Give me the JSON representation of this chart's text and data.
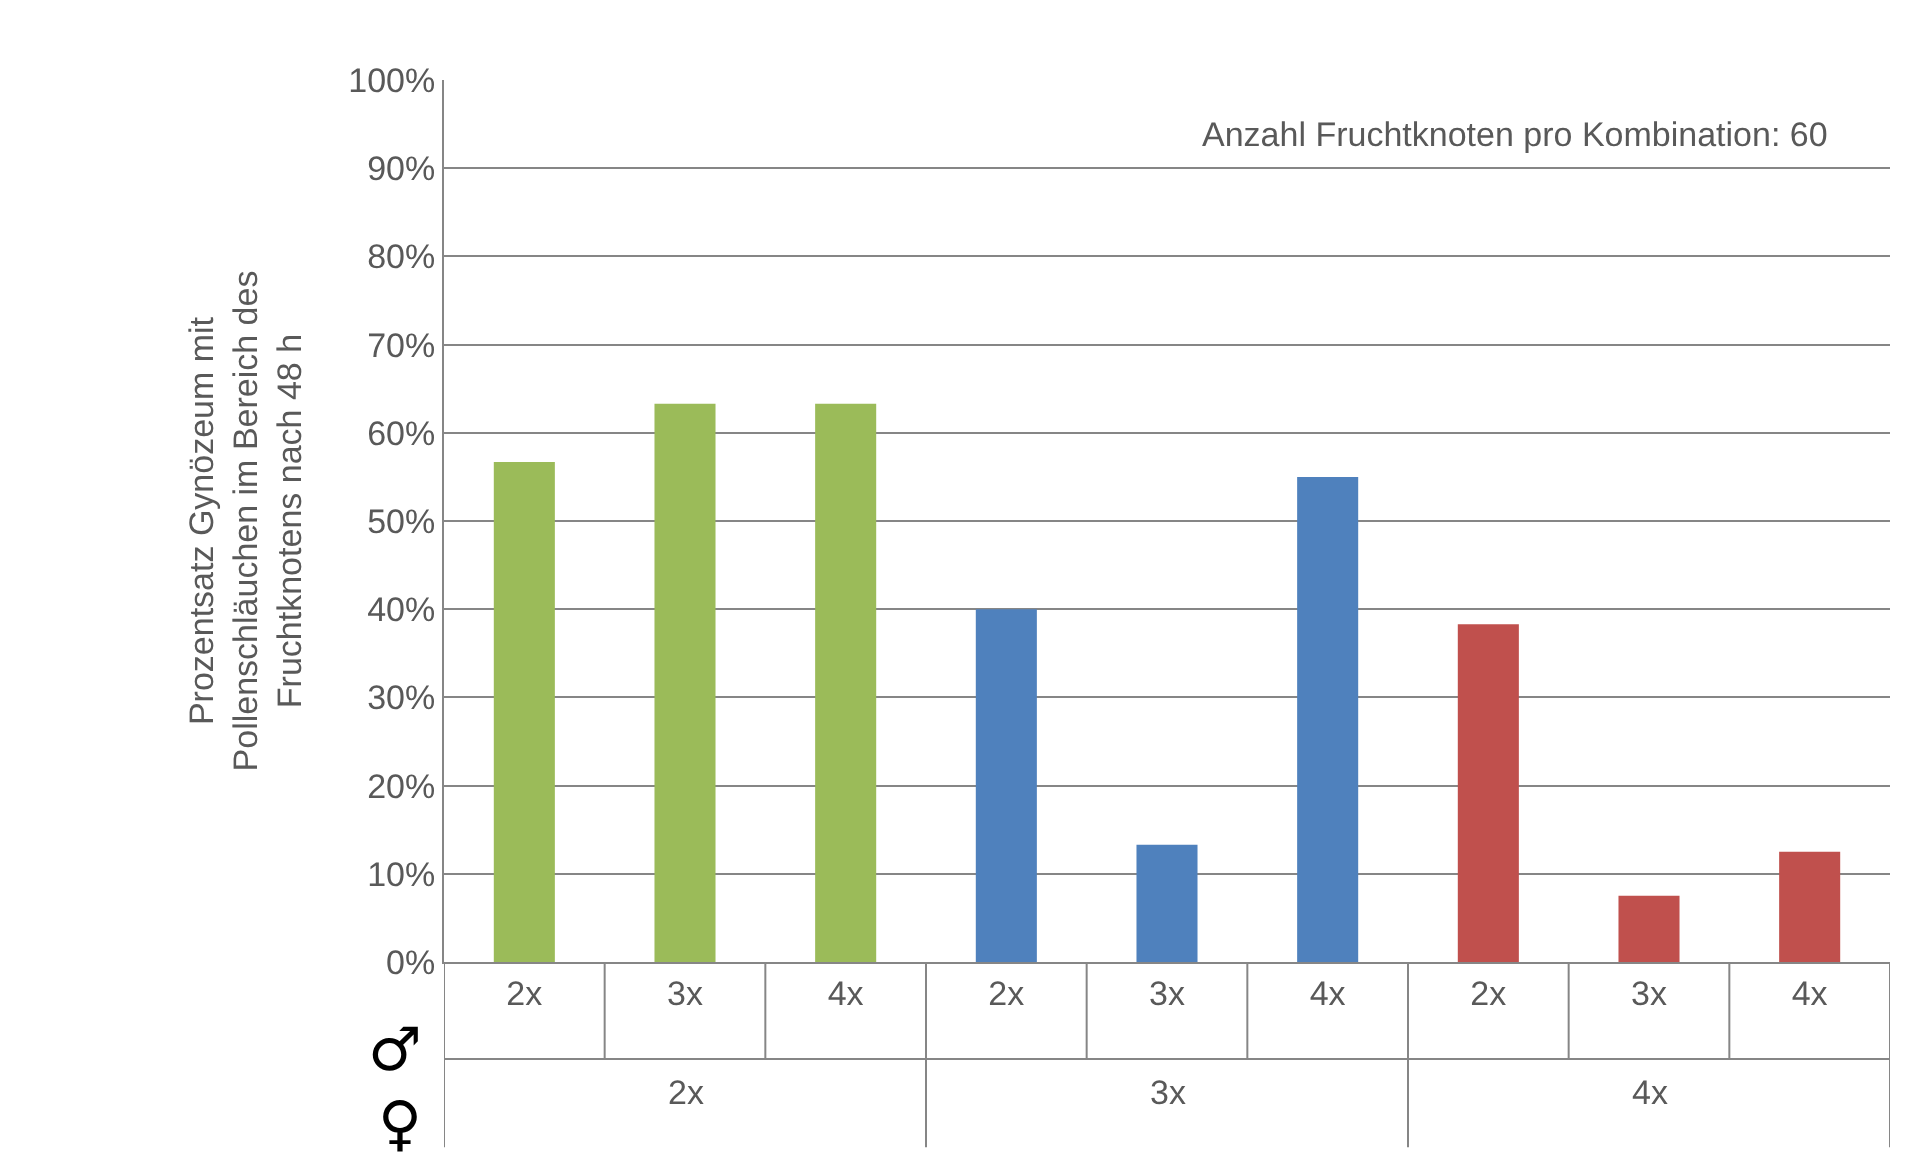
{
  "chart_data": {
    "type": "bar",
    "ylabel": "Prozentsatz Gynözeum mit Pollenschläuchen im Bereich des Fruchtknotens nach 48 h",
    "categories": [
      "2x",
      "3x",
      "4x",
      "2x",
      "3x",
      "4x",
      "2x",
      "3x",
      "4x"
    ],
    "values": [
      56.7,
      63.3,
      63.3,
      40.0,
      13.3,
      55.0,
      38.3,
      7.5,
      12.5
    ],
    "colors": [
      "#9bbb59",
      "#9bbb59",
      "#9bbb59",
      "#4f81bd",
      "#4f81bd",
      "#4f81bd",
      "#c0504d",
      "#c0504d",
      "#c0504d"
    ],
    "ylim": [
      0,
      100
    ],
    "yticks": [
      {
        "value": 0,
        "label": "0%"
      },
      {
        "value": 10,
        "label": "10%"
      },
      {
        "value": 20,
        "label": "20%"
      },
      {
        "value": 30,
        "label": "30%"
      },
      {
        "value": 40,
        "label": "40%"
      },
      {
        "value": 50,
        "label": "50%"
      },
      {
        "value": 60,
        "label": "60%"
      },
      {
        "value": 70,
        "label": "70%"
      },
      {
        "value": 80,
        "label": "80%"
      },
      {
        "value": 90,
        "label": "90%"
      },
      {
        "value": 100,
        "label": "100%"
      }
    ],
    "grid": "y",
    "legend": false,
    "annotations": [
      "Anzahl Fruchtknoten pro Kombination: 60",
      "♂",
      "♀",
      "2x",
      "3x",
      "4x"
    ]
  }
}
